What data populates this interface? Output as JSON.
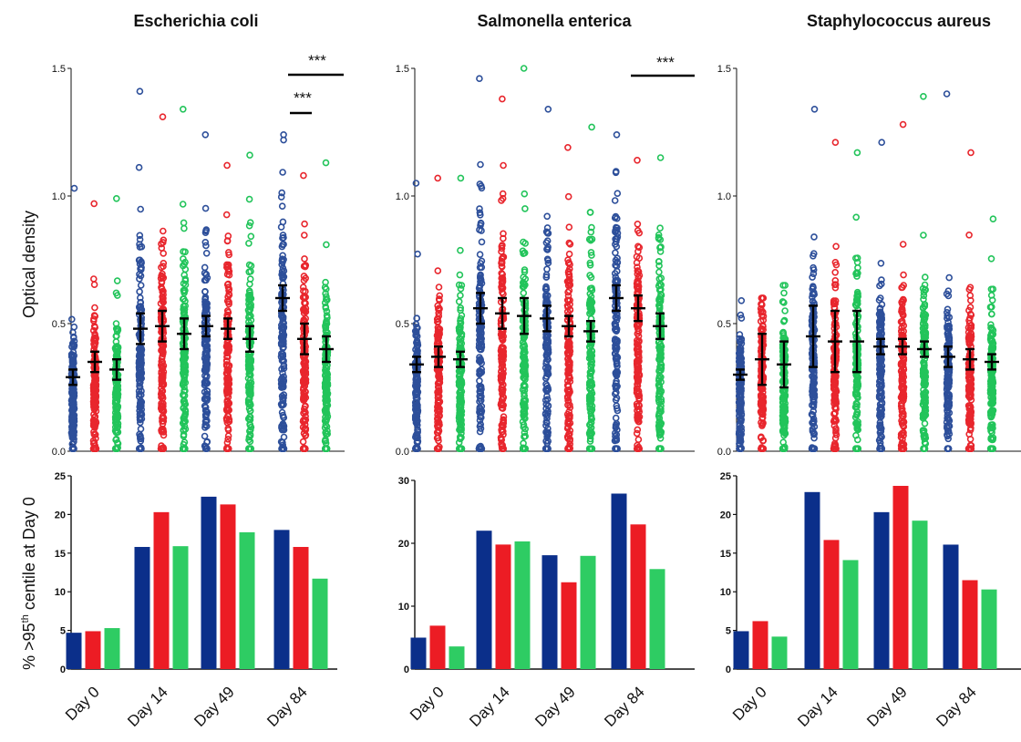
{
  "colors": {
    "blue": "#2d4f9a",
    "red": "#e8262d",
    "green": "#22c45a",
    "navy": "#0b2f8a",
    "bar_red": "#ec1c24",
    "bar_green": "#2ecc63"
  },
  "categories": [
    "Day 0",
    "Day 14",
    "Day 49",
    "Day 84"
  ],
  "ylabel_top": "Optical density",
  "ylabel_bottom": "% >95th centile at Day 0",
  "chart_data": [
    {
      "type": "scatter",
      "title": "Escherichia coli",
      "ylabel": "Optical density",
      "ylim": [
        0,
        1.5
      ],
      "yticks": [
        "0.0",
        "0.5",
        "1.0",
        "1.5"
      ],
      "series": [
        {
          "values": [
            0.29,
            0.48,
            0.49,
            0.6
          ],
          "sem": [
            0.03,
            0.06,
            0.04,
            0.05
          ],
          "max": [
            1.03,
            1.41,
            1.24,
            1.24
          ]
        },
        {
          "values": [
            0.35,
            0.49,
            0.48,
            0.44
          ],
          "sem": [
            0.04,
            0.06,
            0.04,
            0.06
          ],
          "max": [
            0.97,
            1.31,
            1.12,
            1.08
          ]
        },
        {
          "values": [
            0.32,
            0.46,
            0.44,
            0.4
          ],
          "sem": [
            0.04,
            0.06,
            0.05,
            0.05
          ],
          "max": [
            0.99,
            1.34,
            1.16,
            1.13
          ]
        }
      ],
      "significance": [
        {
          "label": "***",
          "from": 3,
          "to": 4
        },
        {
          "label": "***",
          "from": 3,
          "to": 3.3
        }
      ]
    },
    {
      "type": "scatter",
      "title": "Salmonella enterica",
      "ylabel": "Optical density",
      "ylim": [
        0,
        1.5
      ],
      "yticks": [
        "0.0",
        "0.5",
        "1.0",
        "1.5"
      ],
      "series": [
        {
          "values": [
            0.34,
            0.56,
            0.52,
            0.6
          ],
          "sem": [
            0.03,
            0.06,
            0.05,
            0.05
          ],
          "max": [
            1.05,
            1.46,
            1.34,
            1.24
          ]
        },
        {
          "values": [
            0.37,
            0.54,
            0.49,
            0.56
          ],
          "sem": [
            0.04,
            0.06,
            0.04,
            0.05
          ],
          "max": [
            1.07,
            1.38,
            1.19,
            1.14
          ]
        },
        {
          "values": [
            0.36,
            0.53,
            0.47,
            0.49
          ],
          "sem": [
            0.03,
            0.07,
            0.04,
            0.05
          ],
          "max": [
            1.07,
            1.5,
            1.27,
            1.15
          ]
        }
      ],
      "significance": [
        {
          "label": "***",
          "from": 3,
          "to": 4
        }
      ]
    },
    {
      "type": "scatter",
      "title": "Staphylococcus aureus",
      "ylabel": "Optical density",
      "ylim": [
        0,
        1.5
      ],
      "yticks": [
        "0.0",
        "0.5",
        "1.0",
        "1.5"
      ],
      "series": [
        {
          "values": [
            0.3,
            0.45,
            0.41,
            0.37
          ],
          "sem": [
            0.02,
            0.12,
            0.03,
            0.04
          ],
          "max": [
            0.59,
            1.34,
            1.21,
            1.4
          ]
        },
        {
          "values": [
            0.36,
            0.43,
            0.41,
            0.36
          ],
          "sem": [
            0.1,
            0.12,
            0.03,
            0.04
          ],
          "max": [
            0.6,
            1.21,
            1.28,
            1.17
          ]
        },
        {
          "values": [
            0.34,
            0.43,
            0.4,
            0.35
          ],
          "sem": [
            0.09,
            0.12,
            0.03,
            0.03
          ],
          "max": [
            0.65,
            1.17,
            1.39,
            0.91
          ]
        }
      ],
      "significance": []
    },
    {
      "type": "bar",
      "ylabel": "% >95th centile at Day 0",
      "ylim": [
        0,
        25
      ],
      "yticks": [
        "0",
        "5",
        "10",
        "15",
        "20",
        "25"
      ],
      "categories": [
        "Day 0",
        "Day 14",
        "Day 49",
        "Day 84"
      ],
      "series": [
        {
          "values": [
            4.7,
            15.8,
            22.3,
            18.0
          ]
        },
        {
          "values": [
            4.9,
            20.3,
            21.3,
            15.8
          ]
        },
        {
          "values": [
            5.3,
            15.9,
            17.7,
            11.7
          ]
        }
      ]
    },
    {
      "type": "bar",
      "ylim": [
        0,
        30
      ],
      "yticks": [
        "0",
        "10",
        "20",
        "30"
      ],
      "categories": [
        "Day 0",
        "Day 14",
        "Day 49",
        "Day 84"
      ],
      "series": [
        {
          "values": [
            5.0,
            22.0,
            18.1,
            27.9
          ]
        },
        {
          "values": [
            6.9,
            19.8,
            13.8,
            23.0
          ]
        },
        {
          "values": [
            3.6,
            20.3,
            18.0,
            15.9
          ]
        }
      ]
    },
    {
      "type": "bar",
      "ylim": [
        0,
        25
      ],
      "yticks": [
        "0",
        "5",
        "10",
        "15",
        "20",
        "25"
      ],
      "categories": [
        "Day 0",
        "Day 14",
        "Day 49",
        "Day 84"
      ],
      "series": [
        {
          "values": [
            4.9,
            22.9,
            20.3,
            16.1
          ]
        },
        {
          "values": [
            6.2,
            16.7,
            23.7,
            11.5
          ]
        },
        {
          "values": [
            4.2,
            14.1,
            19.2,
            10.3
          ]
        }
      ]
    }
  ]
}
